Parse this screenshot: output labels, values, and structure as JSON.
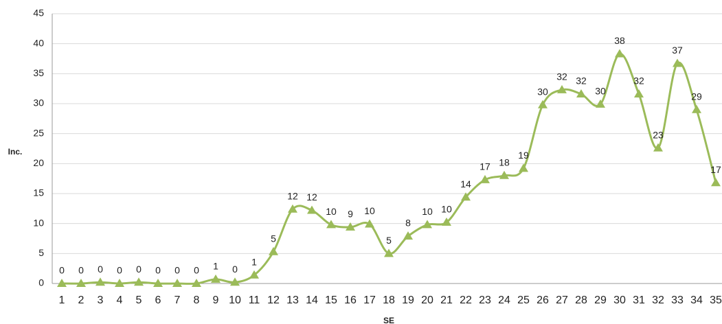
{
  "chart_data": {
    "type": "line",
    "x_label": "SE",
    "y_label": "Inc.",
    "categories": [
      "1",
      "2",
      "3",
      "4",
      "5",
      "6",
      "7",
      "8",
      "9",
      "10",
      "11",
      "12",
      "13",
      "14",
      "15",
      "16",
      "17",
      "18",
      "19",
      "20",
      "21",
      "22",
      "23",
      "24",
      "25",
      "26",
      "27",
      "28",
      "29",
      "30",
      "31",
      "32",
      "33",
      "34",
      "35"
    ],
    "values": [
      0,
      0,
      0.2,
      0,
      0.2,
      0,
      0,
      0,
      0.7,
      0.2,
      1.4,
      5.3,
      12.4,
      12.2,
      9.8,
      9.4,
      9.9,
      5,
      7.9,
      9.8,
      10.2,
      14.4,
      17.3,
      18,
      19.2,
      29.8,
      32.3,
      31.6,
      29.9,
      38.3,
      31.6,
      22.6,
      36.7,
      29,
      16.8
    ],
    "value_labels": [
      "0",
      "0",
      "0",
      "0",
      "0",
      "0",
      "0",
      "0",
      "1",
      "0",
      "1",
      "5",
      "12",
      "12",
      "10",
      "9",
      "10",
      "5",
      "8",
      "10",
      "10",
      "14",
      "17",
      "18",
      "19",
      "30",
      "32",
      "32",
      "30",
      "38",
      "32",
      "23",
      "37",
      "29",
      "17"
    ],
    "color": "#9bbb59",
    "ylim": [
      0,
      45
    ],
    "yticks": [
      0,
      5,
      10,
      15,
      20,
      25,
      30,
      35,
      40,
      45
    ],
    "grid": true
  }
}
